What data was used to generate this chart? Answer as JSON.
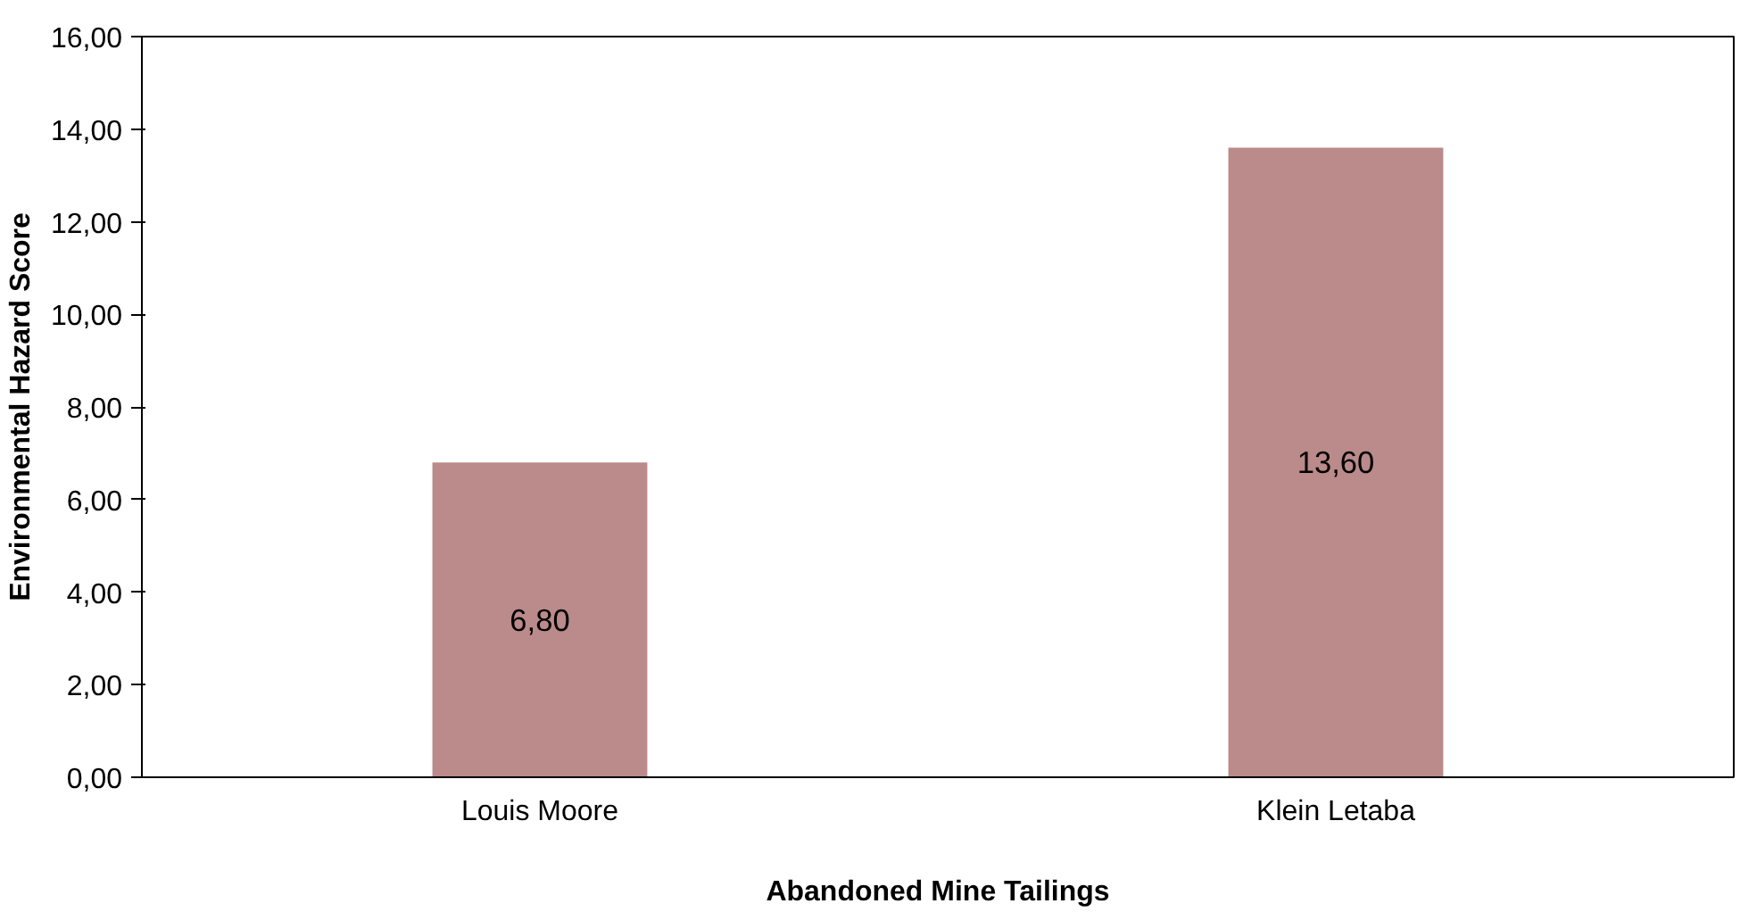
{
  "chart_data": {
    "type": "bar",
    "xlabel": "Abandoned Mine Tailings",
    "ylabel": "Environmental Hazard Score",
    "categories": [
      "Louis Moore",
      "Klein Letaba"
    ],
    "values": [
      6.8,
      13.6
    ],
    "color": "#bb8a8a",
    "value_labels": [
      "6,80",
      "13,60"
    ],
    "ylim": [
      0,
      16
    ],
    "yticks": [
      {
        "value": 0,
        "label": "0,00"
      },
      {
        "value": 2,
        "label": "2,00"
      },
      {
        "value": 4,
        "label": "4,00"
      },
      {
        "value": 6,
        "label": "6,00"
      },
      {
        "value": 8,
        "label": "8,00"
      },
      {
        "value": 10,
        "label": "10,00"
      },
      {
        "value": 12,
        "label": "12,00"
      },
      {
        "value": 14,
        "label": "14,00"
      },
      {
        "value": 16,
        "label": "16,00"
      }
    ],
    "grid": false
  }
}
